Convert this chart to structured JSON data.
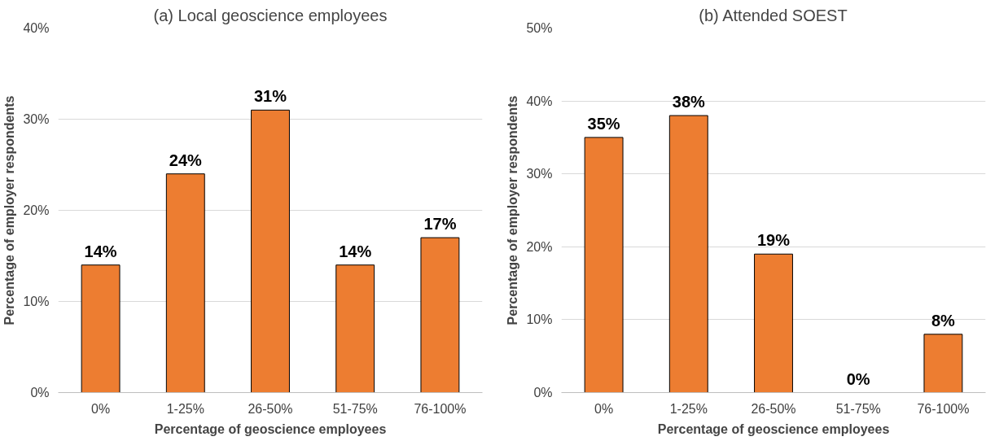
{
  "chart_data": [
    {
      "type": "bar",
      "title": "(a) Local geoscience employees",
      "xlabel": "Percentage of geoscience employees",
      "ylabel": "Percentage of employer respondents",
      "categories": [
        "0%",
        "1-25%",
        "26-50%",
        "51-75%",
        "76-100%"
      ],
      "values": [
        14,
        24,
        31,
        14,
        17
      ],
      "value_labels": [
        "14%",
        "24%",
        "31%",
        "14%",
        "17%"
      ],
      "color": "#ed7d31",
      "ylim": [
        0,
        40
      ],
      "yticks": [
        {
          "value": 0,
          "label": "0%"
        },
        {
          "value": 10,
          "label": "10%"
        },
        {
          "value": 20,
          "label": "20%"
        },
        {
          "value": 30,
          "label": "30%"
        },
        {
          "value": 40,
          "label": "40%"
        }
      ],
      "grid": "y"
    },
    {
      "type": "bar",
      "title": "(b) Attended SOEST",
      "xlabel": "Percentage of geoscience employees",
      "ylabel": "Percentage of employer respondents",
      "categories": [
        "0%",
        "1-25%",
        "26-50%",
        "51-75%",
        "76-100%"
      ],
      "values": [
        35,
        38,
        19,
        0,
        8
      ],
      "value_labels": [
        "35%",
        "38%",
        "19%",
        "0%",
        "8%"
      ],
      "color": "#ed7d31",
      "ylim": [
        0,
        50
      ],
      "yticks": [
        {
          "value": 0,
          "label": "0%"
        },
        {
          "value": 10,
          "label": "10%"
        },
        {
          "value": 20,
          "label": "20%"
        },
        {
          "value": 30,
          "label": "30%"
        },
        {
          "value": 40,
          "label": "40%"
        },
        {
          "value": 50,
          "label": "50%"
        }
      ],
      "grid": "y"
    }
  ]
}
